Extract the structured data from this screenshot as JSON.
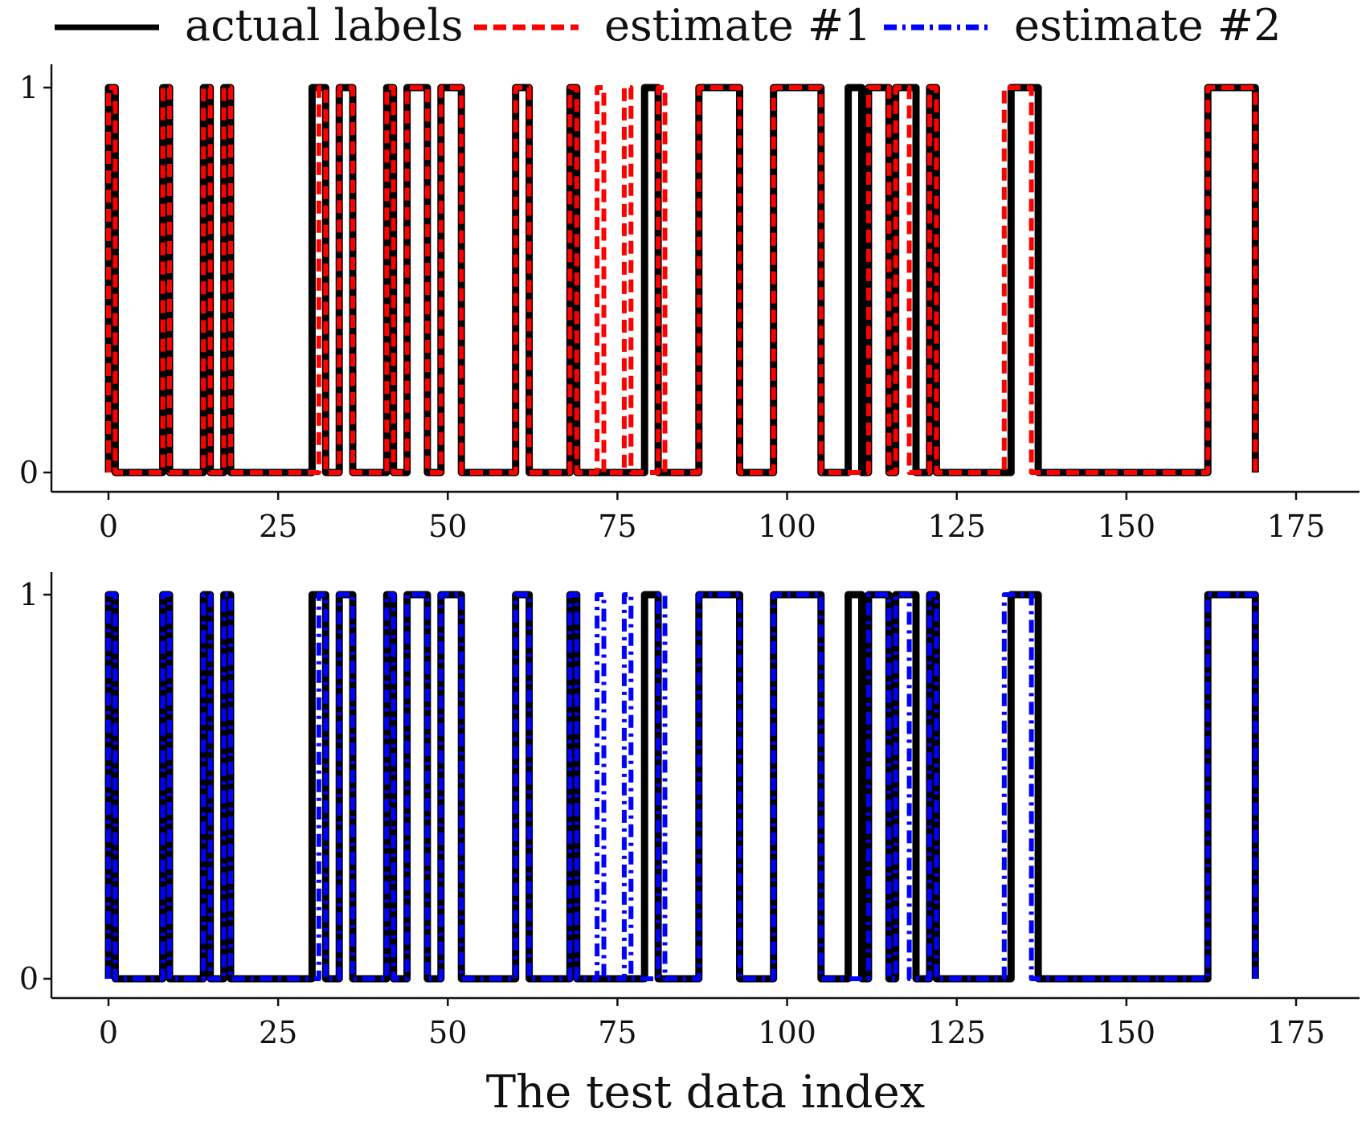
{
  "legend": {
    "items": [
      {
        "label": "actual labels",
        "color": "#000000",
        "dash": "solid"
      },
      {
        "label": "estimate #1",
        "color": "#ff0000",
        "dash": "dashed"
      },
      {
        "label": "estimate #2",
        "color": "#0000ff",
        "dash": "dashdot"
      }
    ]
  },
  "xaxis_title": "The test data index",
  "chart_data": [
    {
      "type": "line",
      "step": true,
      "xlabel": "",
      "ylabel": "",
      "xlim": [
        -8,
        177
      ],
      "ylim": [
        -0.05,
        1.05
      ],
      "xticks": [
        0,
        25,
        50,
        75,
        100,
        125,
        150,
        175
      ],
      "yticks": [
        0,
        1
      ],
      "grid": false,
      "series": [
        {
          "name": "actual labels",
          "color": "#000000",
          "dash": "solid",
          "intervals": [
            [
              0,
              1
            ],
            [
              8,
              9
            ],
            [
              14,
              15
            ],
            [
              17,
              18
            ],
            [
              30,
              32
            ],
            [
              34,
              36
            ],
            [
              41,
              42
            ],
            [
              44,
              47
            ],
            [
              49,
              52
            ],
            [
              60,
              62
            ],
            [
              68,
              69
            ],
            [
              79,
              81
            ],
            [
              87,
              93
            ],
            [
              98,
              105
            ],
            [
              109,
              111
            ],
            [
              112,
              115
            ],
            [
              116,
              119
            ],
            [
              121,
              122
            ],
            [
              133,
              137
            ],
            [
              162,
              169
            ]
          ]
        },
        {
          "name": "estimate #1",
          "color": "#ff0000",
          "dash": "dashed",
          "intervals": [
            [
              0,
              1
            ],
            [
              8,
              9
            ],
            [
              14,
              15
            ],
            [
              17,
              18
            ],
            [
              31,
              32
            ],
            [
              34,
              36
            ],
            [
              41,
              42
            ],
            [
              44,
              47
            ],
            [
              49,
              52
            ],
            [
              60,
              62
            ],
            [
              68,
              69
            ],
            [
              72,
              73
            ],
            [
              76,
              77
            ],
            [
              81,
              82
            ],
            [
              87,
              93
            ],
            [
              98,
              105
            ],
            [
              112,
              115
            ],
            [
              116,
              118
            ],
            [
              121,
              122
            ],
            [
              132,
              136
            ],
            [
              162,
              169
            ]
          ]
        }
      ]
    },
    {
      "type": "line",
      "step": true,
      "xlabel": "The test data index",
      "ylabel": "",
      "xlim": [
        -8,
        177
      ],
      "ylim": [
        -0.05,
        1.05
      ],
      "xticks": [
        0,
        25,
        50,
        75,
        100,
        125,
        150,
        175
      ],
      "yticks": [
        0,
        1
      ],
      "grid": false,
      "series": [
        {
          "name": "actual labels",
          "color": "#000000",
          "dash": "solid",
          "intervals": [
            [
              0,
              1
            ],
            [
              8,
              9
            ],
            [
              14,
              15
            ],
            [
              17,
              18
            ],
            [
              30,
              32
            ],
            [
              34,
              36
            ],
            [
              41,
              42
            ],
            [
              44,
              47
            ],
            [
              49,
              52
            ],
            [
              60,
              62
            ],
            [
              68,
              69
            ],
            [
              79,
              81
            ],
            [
              87,
              93
            ],
            [
              98,
              105
            ],
            [
              109,
              111
            ],
            [
              112,
              115
            ],
            [
              116,
              119
            ],
            [
              121,
              122
            ],
            [
              133,
              137
            ],
            [
              162,
              169
            ]
          ]
        },
        {
          "name": "estimate #2",
          "color": "#0000ff",
          "dash": "dashdot",
          "intervals": [
            [
              0,
              1
            ],
            [
              8,
              9
            ],
            [
              14,
              15
            ],
            [
              17,
              18
            ],
            [
              31,
              32
            ],
            [
              34,
              36
            ],
            [
              41,
              42
            ],
            [
              44,
              47
            ],
            [
              49,
              52
            ],
            [
              60,
              62
            ],
            [
              68,
              69
            ],
            [
              72,
              73
            ],
            [
              76,
              77
            ],
            [
              81,
              82
            ],
            [
              87,
              93
            ],
            [
              98,
              105
            ],
            [
              112,
              115
            ],
            [
              116,
              118
            ],
            [
              121,
              122
            ],
            [
              132,
              136
            ],
            [
              162,
              169
            ]
          ]
        }
      ]
    }
  ]
}
